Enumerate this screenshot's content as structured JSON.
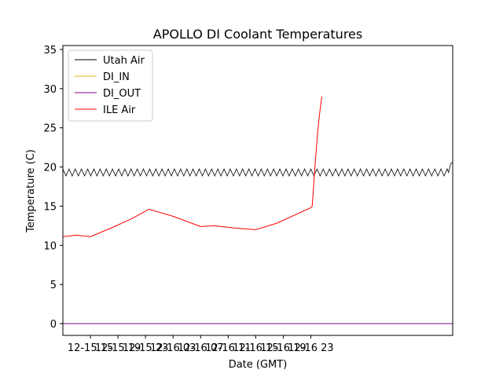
{
  "chart_data": {
    "type": "line",
    "title": "APOLLO DI Coolant Temperatures",
    "xlabel": "Date (GMT)",
    "ylabel": "Temperature (C)",
    "xlim": [
      11.0,
      67.6
    ],
    "ylim": [
      -1.5,
      35.5
    ],
    "x_units": "hours since 12-15 00:00 GMT",
    "grid": false,
    "legend_position": "top-left",
    "y_ticks": [
      0,
      5,
      10,
      15,
      20,
      25,
      30,
      35
    ],
    "x_ticks": [
      {
        "value": 15,
        "label": "12-15 15"
      },
      {
        "value": 19,
        "label": "12-15 19"
      },
      {
        "value": 23,
        "label": "12-15 23"
      },
      {
        "value": 27,
        "label": "12-16 03"
      },
      {
        "value": 31,
        "label": "12-16 07"
      },
      {
        "value": 35,
        "label": "12-16 11"
      },
      {
        "value": 39,
        "label": "12-16 15"
      },
      {
        "value": 43,
        "label": "12-16 19"
      },
      {
        "value": 47,
        "label": "12-16 23"
      }
    ],
    "series": [
      {
        "name": "Utah Air",
        "color": "#000000",
        "oscillation": {
          "amplitude": 0.45,
          "period_hours": 0.9
        },
        "x": [
          11.0,
          67.0,
          67.3,
          67.6
        ],
        "y": [
          19.3,
          19.3,
          20.4,
          20.6
        ]
      },
      {
        "name": "DI_IN",
        "color": "#dbb40c",
        "x": [
          11.0,
          67.6
        ],
        "y": [
          0.0,
          0.0
        ]
      },
      {
        "name": "DI_OUT",
        "color": "#800080",
        "x": [
          11.0,
          67.6
        ],
        "y": [
          0.0,
          0.0
        ]
      },
      {
        "name": "ILE Air",
        "color": "#ff0000",
        "x": [
          11.0,
          13.0,
          15.0,
          18.0,
          21.0,
          23.5,
          27.0,
          31.0,
          33.0,
          36.0,
          39.0,
          42.0,
          45.0,
          47.0,
          47.2,
          47.6,
          48.0,
          48.3,
          48.6
        ],
        "y": [
          11.1,
          11.3,
          11.1,
          12.2,
          13.4,
          14.6,
          13.7,
          12.4,
          12.5,
          12.2,
          12.0,
          12.8,
          14.0,
          14.8,
          15.0,
          20.0,
          24.5,
          27.0,
          29.0
        ]
      }
    ]
  }
}
